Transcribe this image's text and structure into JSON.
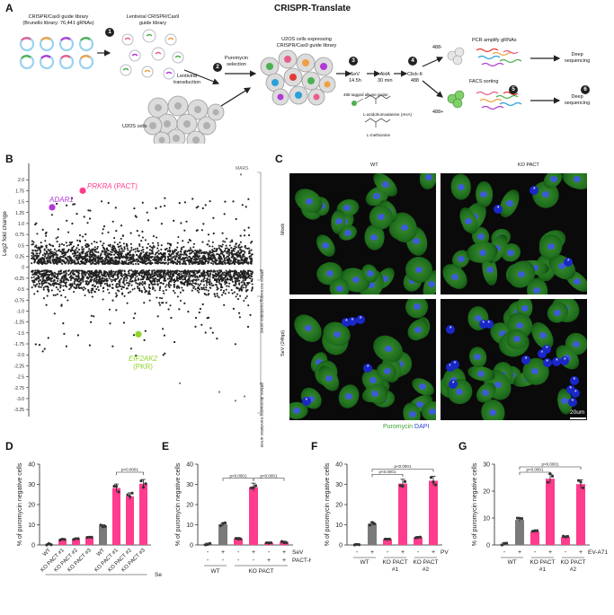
{
  "panelA": {
    "label": "A",
    "title": "CRISPR-Translate",
    "library_line1": "CRISPR/Cas9 guide library",
    "library_line2": "(Brunello library: 76,441 gRNAs)",
    "lentiviral_line1": "Lentiviral CRISPR/Cas9",
    "lentiviral_line2": "guide library",
    "transduction_line1": "Lentiviral",
    "transduction_line2": "transduction",
    "u2os": "U2OS cells",
    "expressing_line1": "U2OS cells expressing",
    "expressing_line2": "CRISPR/Cas9 guide library",
    "puromycin_line1": "Puromycin",
    "puromycin_line2": "selection",
    "sev_line1": "SeV",
    "sev_line2": "14.5h",
    "aha_line1": "AHA",
    "aha_line2": "30 min",
    "click_line1": "Click-It",
    "click_line2": "488",
    "probe": "488 tagged alkyne probe",
    "aha_name": "L-azidohomoalanine (AHA)",
    "met_name": "L-methionine",
    "neg": "488-",
    "pos": "488+",
    "pcr": "PCR amplify gRNAs",
    "facs": "FACS sorting",
    "deep1_line1": "Deep",
    "deep1_line2": "sequencing",
    "deep2_line1": "Deep",
    "deep2_line2": "sequencing",
    "steps": [
      "1",
      "2",
      "3",
      "4",
      "5",
      "6"
    ]
  },
  "panelB": {
    "label": "B",
    "ylabel": "Log2 fold change",
    "right_top": "gRNAs increasing translation arrest",
    "right_bottom": "gRNAs decreasing translation arrest",
    "mars": "MARS",
    "prkra": "PRKRA",
    "prkra_alias": "(PACT)",
    "adar1": "ADAR1",
    "eif2ak2": "EIF2AK2",
    "pkr": "(PKR)",
    "yticks": [
      "2.0",
      "1.75",
      "1.5",
      "1.25",
      "1.0",
      "0.75",
      "0.5",
      "0.25",
      "0",
      "-0.25",
      "-0.5",
      "-0.75",
      "-1.0",
      "-1.25",
      "-1.5",
      "-1.75",
      "-2.0",
      "-2.25",
      "-2.5",
      "-2.75",
      "-3.0",
      "-3.25"
    ],
    "colors": {
      "prkra": "#ff3c8e",
      "adar1": "#b13ad6",
      "eif2ak2": "#8fd42a",
      "points": "#222222"
    }
  },
  "panelC": {
    "label": "C",
    "col_wt": "WT",
    "col_ko": "KO PACT",
    "row_mock": "Mock",
    "row_sev": "SeV (24hpi)",
    "legend_puro": "Puromycin",
    "legend_dapi": "DAPI",
    "scale": "20um",
    "star": "*"
  },
  "chart_data": [
    {
      "type": "bar",
      "panel": "D",
      "ylabel": "% of puromycin negative cells",
      "ylim": [
        0,
        40
      ],
      "yticks": [
        "0",
        "10",
        "20",
        "30",
        "40"
      ],
      "categories": [
        "WT",
        "KO PACT #1",
        "KO PACT #2",
        "KO PACT #3",
        "WT",
        "KO PACT #1",
        "KO PACT #2",
        "KO PACT #3"
      ],
      "values": [
        0.3,
        2.7,
        2.9,
        3.7,
        9.4,
        28.2,
        24.1,
        30.3
      ],
      "condition_label": "SeV",
      "condition_values": [
        "-",
        "-",
        "-",
        "-",
        "+",
        "+",
        "+",
        "+"
      ],
      "pvalue": "p<0.0001"
    },
    {
      "type": "bar",
      "panel": "E",
      "ylabel": "% of puromycin negative cells",
      "ylim": [
        0,
        40
      ],
      "yticks": [
        "0",
        "10",
        "20",
        "30",
        "40"
      ],
      "categories": [
        "WT",
        "WT",
        "KO PACT",
        "KO PACT",
        "KO PACT",
        "KO PACT"
      ],
      "values": [
        0.5,
        10.2,
        3.3,
        28.6,
        1.1,
        1.5
      ],
      "row1_label": "SeV",
      "row1_values": [
        "-",
        "+",
        "-",
        "+",
        "-",
        "+"
      ],
      "row2_label": "PACT-HA",
      "row2_values": [
        "-",
        "-",
        "-",
        "-",
        "+",
        "+"
      ],
      "group_labels": [
        "WT",
        "KO PACT"
      ],
      "pvalues": [
        "p<0.0001",
        "p<0.0001"
      ]
    },
    {
      "type": "bar",
      "panel": "F",
      "ylabel": "% of puromycin negative cells",
      "ylim": [
        0,
        40
      ],
      "yticks": [
        "0",
        "10",
        "20",
        "30",
        "40"
      ],
      "categories": [
        "WT",
        "WT",
        "KO PACT #1",
        "KO PACT #1",
        "KO PACT #2",
        "KO PACT #2"
      ],
      "values": [
        0.3,
        10.6,
        2.9,
        30.4,
        3.8,
        31.8
      ],
      "condition_label": "PV",
      "condition_values": [
        "-",
        "+",
        "-",
        "+",
        "-",
        "+"
      ],
      "group_labels": [
        "WT",
        "KO PACT",
        "KO PACT"
      ],
      "group_sub": [
        "",
        "#1",
        "#2"
      ],
      "pvalues": [
        "p<0.0001",
        "p<0.0001"
      ]
    },
    {
      "type": "bar",
      "panel": "G",
      "ylabel": "% of puromycin negative cells",
      "ylim": [
        0,
        30
      ],
      "yticks": [
        "0",
        "10",
        "20",
        "30"
      ],
      "categories": [
        "WT",
        "WT",
        "KO PACT #1",
        "KO PACT #1",
        "KO PACT #2",
        "KO PACT #2"
      ],
      "values": [
        0.4,
        9.3,
        5.0,
        24.6,
        3.0,
        22.6
      ],
      "condition_label": "EV-A71",
      "condition_values": [
        "-",
        "+",
        "-",
        "+",
        "-",
        "+"
      ],
      "group_labels": [
        "WT",
        "KO PACT",
        "KO PACT"
      ],
      "group_sub": [
        "",
        "#1",
        "#2"
      ],
      "pvalues": [
        "p<0.0001",
        "p<0.0001"
      ]
    }
  ],
  "colors": {
    "gray_bar": "#7a7a7a",
    "pink_bar": "#ff3c8e",
    "dark": "#222222"
  }
}
